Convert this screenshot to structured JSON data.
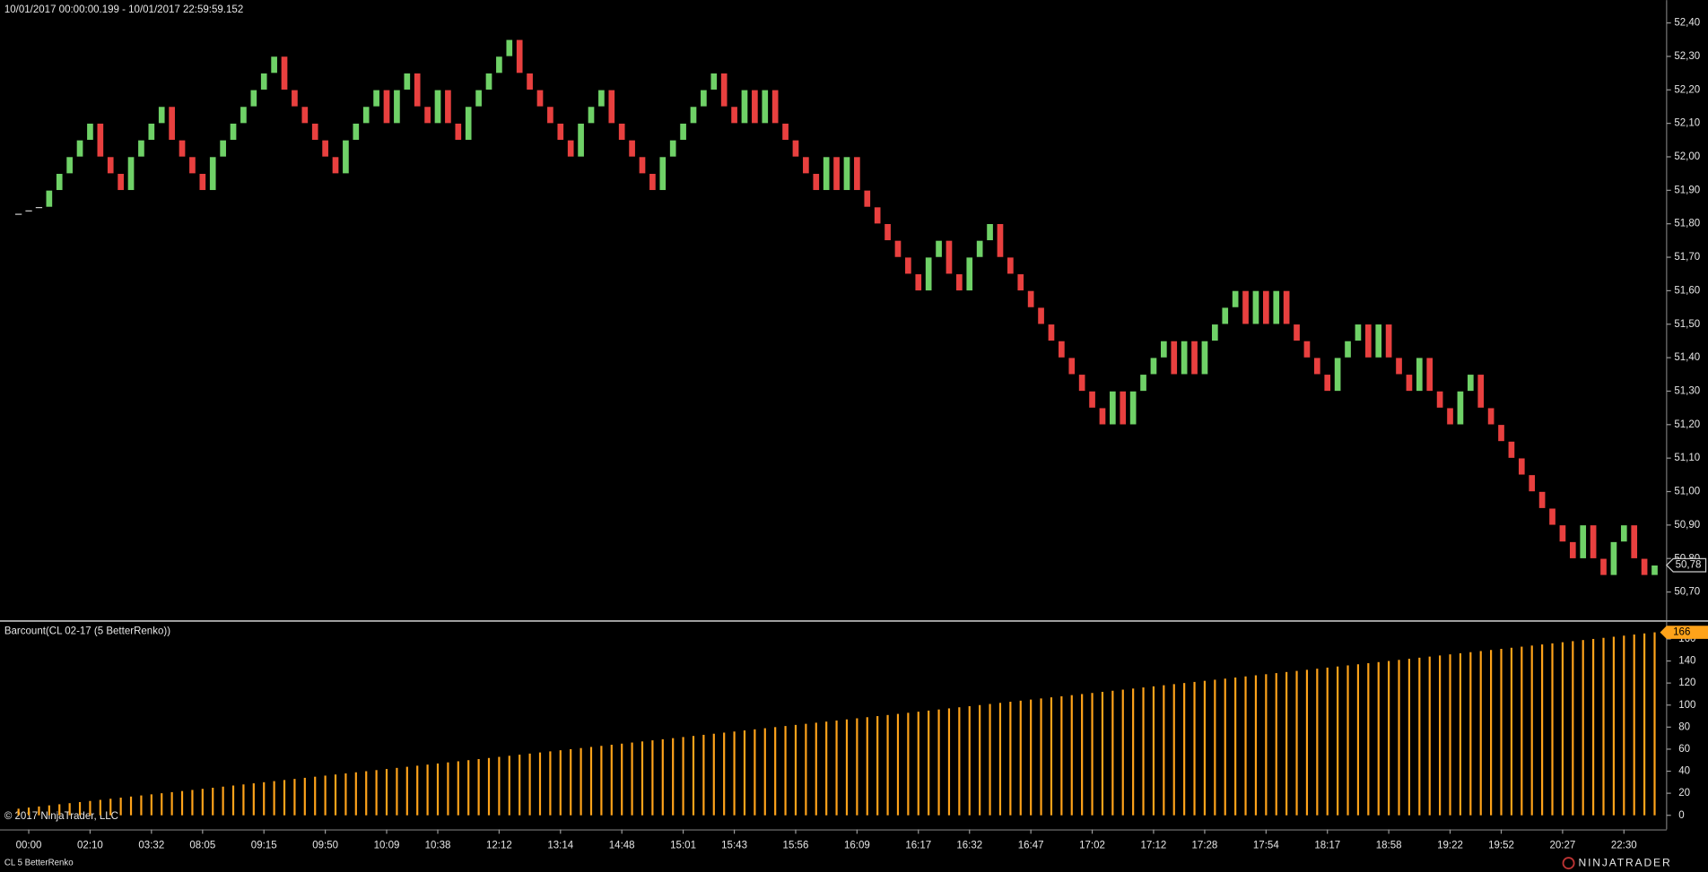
{
  "header": {
    "range": "10/01/2017 00:00:00.199 - 10/01/2017 22:59:59.152"
  },
  "footer": {
    "copyright": "© 2017 NinjaTrader, LLC",
    "instrument": "CL 5 BetterRenko",
    "brand": "NINJATRADER"
  },
  "chart_data": [
    {
      "type": "candlestick",
      "up_color": "#6fd167",
      "down_color": "#e8403f",
      "categories": [
        null,
        "00:00",
        null,
        null,
        null,
        null,
        null,
        "02:10",
        null,
        null,
        null,
        null,
        null,
        "03:32",
        null,
        null,
        null,
        null,
        "08:05",
        null,
        null,
        null,
        null,
        null,
        "09:15",
        null,
        null,
        null,
        null,
        null,
        "09:50",
        null,
        null,
        null,
        null,
        null,
        "10:09",
        null,
        null,
        null,
        null,
        "10:38",
        null,
        null,
        null,
        null,
        null,
        "12:12",
        null,
        null,
        null,
        null,
        null,
        "13:14",
        null,
        null,
        null,
        null,
        null,
        "14:48",
        null,
        null,
        null,
        null,
        null,
        "15:01",
        null,
        null,
        null,
        null,
        "15:43",
        null,
        null,
        null,
        null,
        null,
        "15:56",
        null,
        null,
        null,
        null,
        null,
        "16:09",
        null,
        null,
        null,
        null,
        null,
        "16:17",
        null,
        null,
        null,
        null,
        "16:32",
        null,
        null,
        null,
        null,
        null,
        "16:47",
        null,
        null,
        null,
        null,
        null,
        "17:02",
        null,
        null,
        null,
        null,
        null,
        "17:12",
        null,
        null,
        null,
        null,
        "17:28",
        null,
        null,
        null,
        null,
        null,
        "17:54",
        null,
        null,
        null,
        null,
        null,
        "18:17",
        null,
        null,
        null,
        null,
        null,
        "18:58",
        null,
        null,
        null,
        null,
        null,
        "19:22",
        null,
        null,
        null,
        null,
        "19:52",
        null,
        null,
        null,
        null,
        null,
        "20:27",
        null,
        null,
        null,
        null,
        null,
        "22:30",
        null,
        null,
        null
      ],
      "open": [
        51.83,
        51.84,
        51.85,
        51.85,
        51.9,
        51.95,
        52.0,
        52.05,
        52.1,
        52.0,
        51.95,
        51.9,
        52.0,
        52.05,
        52.1,
        52.15,
        52.05,
        52.0,
        51.95,
        51.9,
        52.0,
        52.05,
        52.1,
        52.15,
        52.2,
        52.25,
        52.3,
        52.2,
        52.15,
        52.1,
        52.05,
        52.0,
        51.95,
        52.05,
        52.1,
        52.15,
        52.2,
        52.1,
        52.2,
        52.25,
        52.15,
        52.1,
        52.2,
        52.1,
        52.05,
        52.15,
        52.2,
        52.25,
        52.3,
        52.35,
        52.25,
        52.2,
        52.15,
        52.1,
        52.05,
        52.0,
        52.1,
        52.15,
        52.2,
        52.1,
        52.05,
        52.0,
        51.95,
        51.9,
        52.0,
        52.05,
        52.1,
        52.15,
        52.2,
        52.25,
        52.15,
        52.1,
        52.2,
        52.1,
        52.2,
        52.1,
        52.05,
        52.0,
        51.95,
        51.9,
        52.0,
        51.9,
        52.0,
        51.9,
        51.85,
        51.8,
        51.75,
        51.7,
        51.65,
        51.6,
        51.7,
        51.75,
        51.65,
        51.6,
        51.7,
        51.75,
        51.8,
        51.7,
        51.65,
        51.6,
        51.55,
        51.5,
        51.45,
        51.4,
        51.35,
        51.3,
        51.25,
        51.2,
        51.3,
        51.2,
        51.3,
        51.35,
        51.4,
        51.45,
        51.35,
        51.45,
        51.35,
        51.45,
        51.5,
        51.55,
        51.6,
        51.5,
        51.6,
        51.5,
        51.6,
        51.5,
        51.45,
        51.4,
        51.35,
        51.3,
        51.4,
        51.45,
        51.5,
        51.4,
        51.5,
        51.4,
        51.35,
        51.3,
        51.4,
        51.3,
        51.25,
        51.2,
        51.3,
        51.35,
        51.25,
        51.2,
        51.15,
        51.1,
        51.05,
        51.0,
        50.95,
        50.9,
        50.85,
        50.8,
        50.9,
        50.8,
        50.75,
        50.85,
        50.9,
        50.8,
        50.75
      ],
      "close": [
        51.83,
        51.84,
        51.85,
        51.9,
        51.95,
        52.0,
        52.05,
        52.1,
        52.0,
        51.95,
        51.9,
        52.0,
        52.05,
        52.1,
        52.15,
        52.05,
        52.0,
        51.95,
        51.9,
        52.0,
        52.05,
        52.1,
        52.15,
        52.2,
        52.25,
        52.3,
        52.2,
        52.15,
        52.1,
        52.05,
        52.0,
        51.95,
        52.05,
        52.1,
        52.15,
        52.2,
        52.1,
        52.2,
        52.25,
        52.15,
        52.1,
        52.2,
        52.1,
        52.05,
        52.15,
        52.2,
        52.25,
        52.3,
        52.35,
        52.25,
        52.2,
        52.15,
        52.1,
        52.05,
        52.0,
        52.1,
        52.15,
        52.2,
        52.1,
        52.05,
        52.0,
        51.95,
        51.9,
        52.0,
        52.05,
        52.1,
        52.15,
        52.2,
        52.25,
        52.15,
        52.1,
        52.2,
        52.1,
        52.2,
        52.1,
        52.05,
        52.0,
        51.95,
        51.9,
        52.0,
        51.9,
        52.0,
        51.9,
        51.85,
        51.8,
        51.75,
        51.7,
        51.65,
        51.6,
        51.7,
        51.75,
        51.65,
        51.6,
        51.7,
        51.75,
        51.8,
        51.7,
        51.65,
        51.6,
        51.55,
        51.5,
        51.45,
        51.4,
        51.35,
        51.3,
        51.25,
        51.2,
        51.3,
        51.2,
        51.3,
        51.35,
        51.4,
        51.45,
        51.35,
        51.45,
        51.35,
        51.45,
        51.5,
        51.55,
        51.6,
        51.5,
        51.6,
        51.5,
        51.6,
        51.5,
        51.45,
        51.4,
        51.35,
        51.3,
        51.4,
        51.45,
        51.5,
        51.4,
        51.5,
        51.4,
        51.35,
        51.3,
        51.4,
        51.3,
        51.25,
        51.2,
        51.3,
        51.35,
        51.25,
        51.2,
        51.15,
        51.1,
        51.05,
        51.0,
        50.95,
        50.9,
        50.85,
        50.8,
        50.9,
        50.8,
        50.75,
        50.85,
        50.9,
        50.8,
        50.75,
        50.78
      ],
      "ylim": [
        50.615,
        52.468
      ],
      "yticks": [
        {
          "value": 50.7,
          "label": "50,70"
        },
        {
          "value": 50.8,
          "label": "50,80"
        },
        {
          "value": 50.9,
          "label": "50,90"
        },
        {
          "value": 51.0,
          "label": "51,00"
        },
        {
          "value": 51.1,
          "label": "51,10"
        },
        {
          "value": 51.2,
          "label": "51,20"
        },
        {
          "value": 51.3,
          "label": "51,30"
        },
        {
          "value": 51.4,
          "label": "51,40"
        },
        {
          "value": 51.5,
          "label": "51,50"
        },
        {
          "value": 51.6,
          "label": "51,60"
        },
        {
          "value": 51.7,
          "label": "51,70"
        },
        {
          "value": 51.8,
          "label": "51,80"
        },
        {
          "value": 51.9,
          "label": "51,90"
        },
        {
          "value": 52.0,
          "label": "52,00"
        },
        {
          "value": 52.1,
          "label": "52,10"
        },
        {
          "value": 52.2,
          "label": "52,20"
        },
        {
          "value": 52.3,
          "label": "52,30"
        },
        {
          "value": 52.4,
          "label": "52,40"
        }
      ],
      "last_price": {
        "value": 50.78,
        "label": "50,78"
      }
    },
    {
      "type": "bar",
      "title": "Barcount(CL 02-17 (5 BetterRenko))",
      "color": "#ffa31a",
      "values": [
        6,
        7,
        8,
        9,
        10,
        11,
        12,
        13,
        14,
        15,
        16,
        17,
        18,
        19,
        20,
        21,
        22,
        23,
        24,
        25,
        26,
        27,
        28,
        29,
        30,
        31,
        32,
        33,
        34,
        35,
        36,
        37,
        38,
        39,
        40,
        41,
        42,
        43,
        44,
        45,
        46,
        47,
        48,
        49,
        50,
        51,
        52,
        53,
        54,
        55,
        56,
        57,
        58,
        59,
        60,
        61,
        62,
        63,
        64,
        65,
        66,
        67,
        68,
        69,
        70,
        71,
        72,
        73,
        74,
        75,
        76,
        77,
        78,
        79,
        80,
        81,
        82,
        83,
        84,
        85,
        86,
        87,
        88,
        89,
        90,
        91,
        92,
        93,
        94,
        95,
        96,
        97,
        98,
        99,
        100,
        101,
        102,
        103,
        104,
        105,
        106,
        107,
        108,
        109,
        110,
        111,
        112,
        113,
        114,
        115,
        116,
        117,
        118,
        119,
        120,
        121,
        122,
        123,
        124,
        125,
        126,
        127,
        128,
        129,
        130,
        131,
        132,
        133,
        134,
        135,
        136,
        137,
        138,
        139,
        140,
        141,
        142,
        143,
        144,
        145,
        146,
        147,
        148,
        149,
        150,
        151,
        152,
        153,
        154,
        155,
        156,
        157,
        158,
        159,
        160,
        161,
        162,
        163,
        164,
        165,
        166
      ],
      "ylim": [
        -12.8,
        174.8
      ],
      "yticks": [
        0,
        20,
        40,
        60,
        80,
        100,
        120,
        140,
        160
      ]
    }
  ]
}
